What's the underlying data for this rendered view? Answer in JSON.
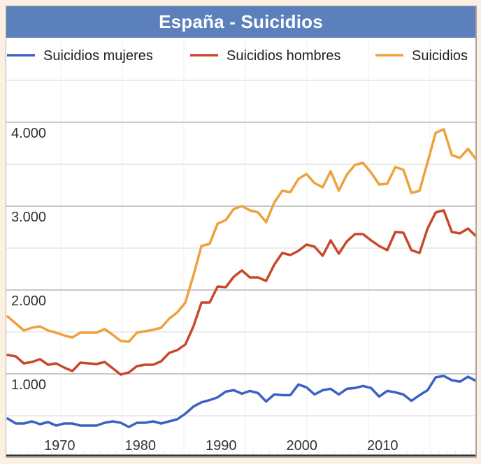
{
  "title": "España - Suicidios",
  "chart_data": {
    "type": "line",
    "title": "España - Suicidios",
    "xlabel": "",
    "ylabel": "",
    "x": [
      1964,
      1965,
      1966,
      1967,
      1968,
      1969,
      1970,
      1971,
      1972,
      1973,
      1974,
      1975,
      1976,
      1977,
      1978,
      1979,
      1980,
      1981,
      1982,
      1983,
      1984,
      1985,
      1986,
      1987,
      1988,
      1989,
      1990,
      1991,
      1992,
      1993,
      1994,
      1995,
      1996,
      1997,
      1998,
      1999,
      2000,
      2001,
      2002,
      2003,
      2004,
      2005,
      2006,
      2007,
      2008,
      2009,
      2010,
      2011,
      2012,
      2013,
      2014,
      2015,
      2016,
      2017,
      2018,
      2019,
      2020,
      2021,
      2022
    ],
    "xticks": [
      "1970",
      "1980",
      "1990",
      "2000",
      "2010"
    ],
    "xtick_values": [
      1970,
      1980,
      1990,
      2000,
      2010
    ],
    "yticks": [
      "1.000",
      "2.000",
      "3.000",
      "4.000"
    ],
    "ytick_values": [
      1000,
      2000,
      3000,
      4000
    ],
    "ylim": [
      0,
      4500
    ],
    "grid": true,
    "legend_position": "top",
    "series": [
      {
        "name": "Suicidios mujeres",
        "color": "#3a62c4",
        "values": [
          467,
          408,
          408,
          433,
          400,
          425,
          383,
          408,
          408,
          383,
          383,
          383,
          417,
          433,
          417,
          367,
          417,
          417,
          433,
          408,
          433,
          458,
          525,
          610,
          661,
          687,
          720,
          788,
          805,
          763,
          797,
          771,
          670,
          754,
          746,
          746,
          873,
          839,
          754,
          805,
          822,
          754,
          822,
          831,
          856,
          831,
          729,
          797,
          780,
          754,
          678,
          746,
          805,
          958,
          975,
          924,
          907,
          966,
          915
        ]
      },
      {
        "name": "Suicidios hombres",
        "color": "#c9472b",
        "values": [
          1225,
          1208,
          1125,
          1142,
          1175,
          1108,
          1125,
          1075,
          1033,
          1133,
          1125,
          1117,
          1142,
          1067,
          992,
          1017,
          1092,
          1108,
          1108,
          1150,
          1250,
          1283,
          1350,
          1567,
          1850,
          1850,
          2042,
          2033,
          2158,
          2233,
          2150,
          2150,
          2108,
          2300,
          2442,
          2417,
          2467,
          2542,
          2517,
          2408,
          2592,
          2433,
          2580,
          2667,
          2667,
          2592,
          2525,
          2475,
          2692,
          2683,
          2475,
          2442,
          2733,
          2925,
          2950,
          2692,
          2675,
          2733,
          2642
        ]
      },
      {
        "name": "Suicidios",
        "color": "#eda23b",
        "values": [
          1683,
          1600,
          1517,
          1550,
          1567,
          1517,
          1492,
          1458,
          1433,
          1492,
          1492,
          1492,
          1533,
          1467,
          1392,
          1383,
          1492,
          1508,
          1525,
          1550,
          1658,
          1733,
          1850,
          2175,
          2525,
          2550,
          2792,
          2833,
          2967,
          3000,
          2950,
          2925,
          2808,
          3042,
          3183,
          3167,
          3325,
          3383,
          3275,
          3225,
          3417,
          3183,
          3375,
          3492,
          3517,
          3400,
          3258,
          3267,
          3467,
          3433,
          3158,
          3183,
          3525,
          3875,
          3917,
          3608,
          3575,
          3683,
          3558
        ]
      }
    ]
  }
}
